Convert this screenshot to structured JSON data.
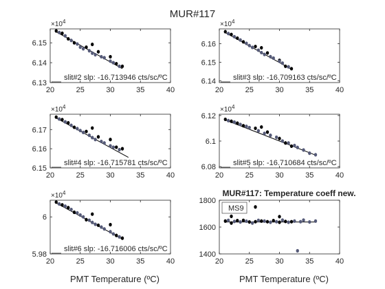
{
  "figure": {
    "title": "MUR#117",
    "background": "#ffffff",
    "marker_colors": {
      "black": "#000000",
      "blue_gray": "#555a78"
    },
    "fit_line_color": "#000000"
  },
  "chart_data": [
    {
      "type": "scatter",
      "id": "slit2",
      "annotation": "slit#2 slp: -16.713946 cts/sc/ºC",
      "exponent_label": "×10",
      "exponent_power": "4",
      "xlim": [
        20,
        40
      ],
      "ylim": [
        61300,
        61570
      ],
      "xticks": [
        20,
        25,
        30,
        35,
        40
      ],
      "yticks": [
        61300,
        61400,
        61500
      ],
      "ytick_labels": [
        "6.13",
        "6.14",
        "6.15"
      ],
      "fit": {
        "x": [
          21,
          32
        ],
        "y": [
          61555,
          61370
        ]
      },
      "series": [
        {
          "color": "black",
          "points": [
            [
              21,
              61560
            ],
            [
              22,
              61548
            ],
            [
              23,
              61520
            ],
            [
              24,
              61500
            ],
            [
              26,
              61478
            ],
            [
              27,
              61492
            ],
            [
              28,
              61455
            ],
            [
              30,
              61430
            ],
            [
              31,
              61395
            ],
            [
              32,
              61382
            ]
          ]
        },
        {
          "color": "blue_gray",
          "points": [
            [
              21.5,
              61552
            ],
            [
              22.5,
              61535
            ],
            [
              23.5,
              61512
            ],
            [
              24.5,
              61494
            ],
            [
              25,
              61478
            ],
            [
              25.5,
              61470
            ],
            [
              26.5,
              61460
            ],
            [
              27,
              61448
            ],
            [
              27.5,
              61440
            ],
            [
              28.5,
              61430
            ],
            [
              29,
              61425
            ],
            [
              30,
              61408
            ],
            [
              30.5,
              61400
            ],
            [
              31.5,
              61382
            ]
          ]
        }
      ]
    },
    {
      "type": "scatter",
      "id": "slit3",
      "annotation": "slit#3 slp: -16.709163 cts/sc/ºC",
      "exponent_label": "×10",
      "exponent_power": "4",
      "xlim": [
        20,
        40
      ],
      "ylim": [
        61390,
        61680
      ],
      "xticks": [
        20,
        25,
        30,
        35,
        40
      ],
      "yticks": [
        61400,
        61500,
        61600
      ],
      "ytick_labels": [
        "6.14",
        "6.15",
        "6.16"
      ],
      "fit": {
        "x": [
          21,
          32
        ],
        "y": [
          61660,
          61462
        ]
      },
      "series": [
        {
          "color": "black",
          "points": [
            [
              21,
              61665
            ],
            [
              22,
              61650
            ],
            [
              23,
              61630
            ],
            [
              24,
              61610
            ],
            [
              26,
              61585
            ],
            [
              27,
              61578
            ],
            [
              28,
              61550
            ],
            [
              30,
              61510
            ],
            [
              31,
              61478
            ],
            [
              32,
              61465
            ]
          ]
        },
        {
          "color": "blue_gray",
          "points": [
            [
              21.5,
              61655
            ],
            [
              22.5,
              61638
            ],
            [
              23.5,
              61620
            ],
            [
              24.5,
              61602
            ],
            [
              25,
              61590
            ],
            [
              25.5,
              61580
            ],
            [
              26.5,
              61565
            ],
            [
              27,
              61552
            ],
            [
              27.5,
              61542
            ],
            [
              28.5,
              61530
            ],
            [
              29,
              61522
            ],
            [
              30,
              61505
            ],
            [
              30.5,
              61495
            ],
            [
              31.5,
              61475
            ]
          ]
        }
      ]
    },
    {
      "type": "scatter",
      "id": "slit4",
      "annotation": "slit#4 slp: -16.715781 cts/sc/ºC",
      "exponent_label": "×10",
      "exponent_power": "4",
      "xlim": [
        20,
        40
      ],
      "ylim": [
        61500,
        61780
      ],
      "xticks": [
        20,
        25,
        30,
        35,
        40
      ],
      "yticks": [
        61500,
        61600,
        61700
      ],
      "ytick_labels": [
        "6.15",
        "6.16",
        "6.17"
      ],
      "fit": {
        "x": [
          21,
          33
        ],
        "y": [
          61760,
          61555
        ]
      },
      "series": [
        {
          "color": "black",
          "points": [
            [
              21,
              61765
            ],
            [
              22,
              61752
            ],
            [
              23,
              61735
            ],
            [
              24,
              61712
            ],
            [
              26,
              61690
            ],
            [
              27,
              61708
            ],
            [
              28,
              61662
            ],
            [
              30,
              61648
            ],
            [
              31,
              61608
            ],
            [
              32,
              61600
            ]
          ]
        },
        {
          "color": "blue_gray",
          "points": [
            [
              21.5,
              61755
            ],
            [
              22.5,
              61740
            ],
            [
              23.5,
              61722
            ],
            [
              24.5,
              61705
            ],
            [
              25,
              61695
            ],
            [
              25.5,
              61685
            ],
            [
              26.5,
              61670
            ],
            [
              27,
              61658
            ],
            [
              27.5,
              61648
            ],
            [
              28.5,
              61638
            ],
            [
              29,
              61630
            ],
            [
              30,
              61615
            ],
            [
              30.5,
              61608
            ],
            [
              31.5,
              61595
            ]
          ]
        }
      ]
    },
    {
      "type": "scatter",
      "id": "slit5",
      "annotation": "slit#5 slp: -16.710684 cts/sc/ºC",
      "exponent_label": "×10",
      "exponent_power": "4",
      "xlim": [
        20,
        40
      ],
      "ylim": [
        60790,
        61210
      ],
      "xticks": [
        20,
        25,
        30,
        35,
        40
      ],
      "yticks": [
        60800,
        61000,
        61200
      ],
      "ytick_labels": [
        "6.08",
        "6.1",
        "6.12"
      ],
      "fit": {
        "x": [
          21,
          36
        ],
        "y": [
          61165,
          60890
        ]
      },
      "series": [
        {
          "color": "black",
          "points": [
            [
              21,
              61170
            ],
            [
              22,
              61155
            ],
            [
              23,
              61140
            ],
            [
              24,
              61120
            ],
            [
              26,
              61100
            ],
            [
              27,
              61110
            ],
            [
              28,
              61070
            ],
            [
              30,
              61020
            ],
            [
              31,
              60985
            ],
            [
              32,
              60960
            ]
          ]
        },
        {
          "color": "blue_gray",
          "points": [
            [
              21.5,
              61160
            ],
            [
              22.5,
              61148
            ],
            [
              23.5,
              61130
            ],
            [
              24.5,
              61115
            ],
            [
              25,
              61105
            ],
            [
              26.5,
              61080
            ],
            [
              27.5,
              61060
            ],
            [
              28.5,
              61045
            ],
            [
              29.5,
              61030
            ],
            [
              30.5,
              61000
            ],
            [
              31.5,
              60985
            ],
            [
              32.5,
              60965
            ],
            [
              33,
              60950
            ],
            [
              34,
              60930
            ],
            [
              35,
              60905
            ],
            [
              36,
              60893
            ]
          ]
        }
      ]
    },
    {
      "type": "scatter",
      "id": "slit6",
      "annotation": "slit#6 slp: -16.716006 cts/sc/ºC",
      "exponent_label": "×10",
      "exponent_power": "4",
      "xlim": [
        20,
        40
      ],
      "ylim": [
        59800,
        60090
      ],
      "xticks": [
        20,
        25,
        30,
        35,
        40
      ],
      "yticks": [
        59800,
        60000
      ],
      "ytick_labels": [
        "5.98",
        "6"
      ],
      "fit": {
        "x": [
          21,
          32
        ],
        "y": [
          60075,
          59880
        ]
      },
      "series": [
        {
          "color": "black",
          "points": [
            [
              21,
              60080
            ],
            [
              22,
              60065
            ],
            [
              23,
              60050
            ],
            [
              24,
              60025
            ],
            [
              26,
              59985
            ],
            [
              27,
              60015
            ],
            [
              28,
              59955
            ],
            [
              30,
              59958
            ],
            [
              31,
              59900
            ],
            [
              32,
              59885
            ]
          ]
        },
        {
          "color": "blue_gray",
          "points": [
            [
              21.5,
              60070
            ],
            [
              22.5,
              60058
            ],
            [
              23.5,
              60040
            ],
            [
              24.5,
              60022
            ],
            [
              25,
              60010
            ],
            [
              25.5,
              60000
            ],
            [
              26.5,
              59982
            ],
            [
              27,
              59970
            ],
            [
              27.5,
              59960
            ],
            [
              28.5,
              59945
            ],
            [
              29,
              59935
            ],
            [
              30,
              59920
            ],
            [
              30.5,
              59908
            ],
            [
              31.5,
              59892
            ]
          ]
        }
      ]
    },
    {
      "type": "scatter",
      "id": "coeff",
      "title": "MUR#117: Temperature coeff new.",
      "legend": [
        "MS9"
      ],
      "xlim": [
        20,
        40
      ],
      "ylim": [
        1400,
        1800
      ],
      "xticks": [
        20,
        25,
        30,
        35,
        40
      ],
      "yticks": [
        1400,
        1600,
        1800
      ],
      "ytick_labels": [
        "1400",
        "1600",
        "1800"
      ],
      "fit": {
        "x": [
          21,
          36
        ],
        "y": [
          1638,
          1638
        ]
      },
      "series": [
        {
          "color": "black",
          "points": [
            [
              21,
              1645
            ],
            [
              22,
              1680
            ],
            [
              22,
              1630
            ],
            [
              23,
              1648
            ],
            [
              24,
              1650
            ],
            [
              25,
              1638
            ],
            [
              26,
              1750
            ],
            [
              26,
              1640
            ],
            [
              27,
              1645
            ],
            [
              28,
              1640
            ],
            [
              29,
              1648
            ],
            [
              30,
              1678
            ],
            [
              30,
              1636
            ],
            [
              31,
              1642
            ],
            [
              32,
              1640
            ]
          ]
        },
        {
          "color": "blue_gray",
          "points": [
            [
              21.5,
              1650
            ],
            [
              22.5,
              1642
            ],
            [
              23.5,
              1638
            ],
            [
              24.5,
              1644
            ],
            [
              25.5,
              1630
            ],
            [
              26.5,
              1650
            ],
            [
              27.5,
              1645
            ],
            [
              28.5,
              1636
            ],
            [
              29.5,
              1640
            ],
            [
              30.5,
              1652
            ],
            [
              31.5,
              1636
            ],
            [
              32.5,
              1645
            ],
            [
              33,
              1423
            ],
            [
              33.5,
              1640
            ],
            [
              34,
              1652
            ],
            [
              35,
              1638
            ],
            [
              36,
              1645
            ]
          ]
        }
      ]
    }
  ],
  "axes": {
    "xlabel_left": "PMT Temperature (ºC)",
    "xlabel_right": "PMT Temperature (ºC)"
  }
}
